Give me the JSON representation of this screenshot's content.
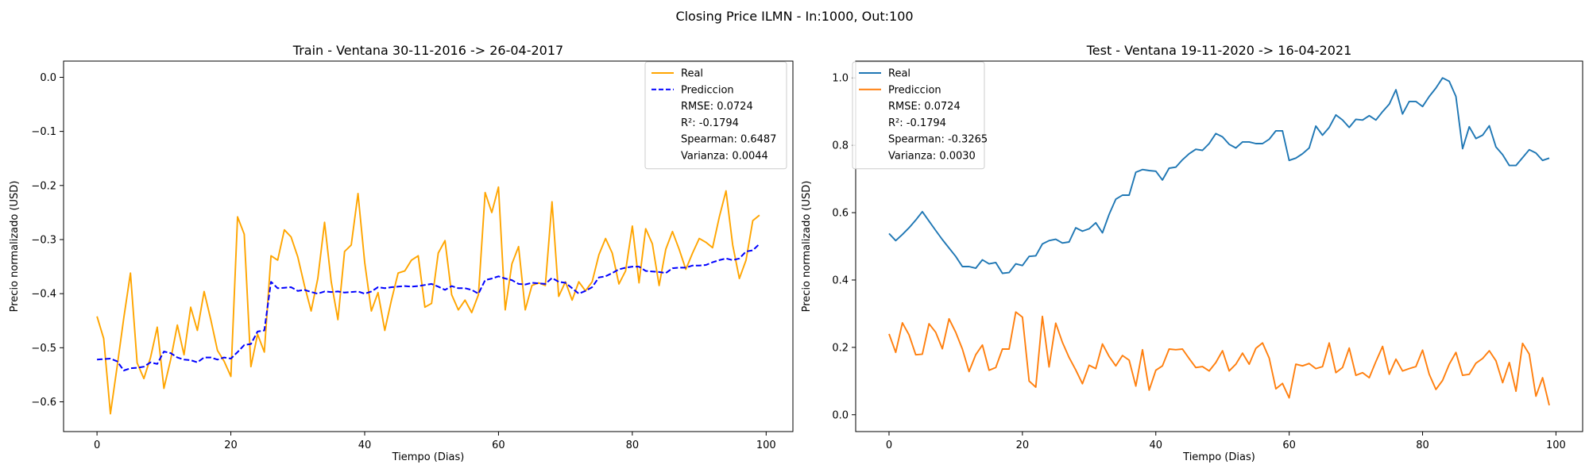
{
  "suptitle": "Closing Price ILMN - In:1000, Out:100",
  "chart_data": [
    {
      "type": "line",
      "title": "Train - Ventana 30-11-2016 -> 26-04-2017",
      "xlabel": "Tiempo (Dias)",
      "ylabel": "Precio normalizado (USD)",
      "xlim": [
        -5,
        104
      ],
      "ylim": [
        -0.655,
        0.03
      ],
      "xticks": [
        0,
        20,
        40,
        60,
        80,
        100
      ],
      "yticks": [
        -0.6,
        -0.5,
        -0.4,
        -0.3,
        -0.2,
        -0.1,
        0.0
      ],
      "ytick_labels": [
        "−0.6",
        "−0.5",
        "−0.4",
        "−0.3",
        "−0.2",
        "−0.1",
        "0.0"
      ],
      "grid": false,
      "legend_position": "top-right",
      "series": [
        {
          "name": "Real",
          "color": "#ffa500",
          "dash": "solid",
          "x_start": 0,
          "values": [
            -0.442,
            -0.483,
            -0.622,
            -0.535,
            -0.445,
            -0.362,
            -0.528,
            -0.557,
            -0.518,
            -0.462,
            -0.575,
            -0.522,
            -0.458,
            -0.513,
            -0.425,
            -0.468,
            -0.396,
            -0.448,
            -0.505,
            -0.525,
            -0.553,
            -0.258,
            -0.29,
            -0.535,
            -0.475,
            -0.508,
            -0.33,
            -0.338,
            -0.282,
            -0.295,
            -0.332,
            -0.385,
            -0.432,
            -0.372,
            -0.268,
            -0.378,
            -0.448,
            -0.322,
            -0.31,
            -0.215,
            -0.342,
            -0.432,
            -0.398,
            -0.468,
            -0.412,
            -0.362,
            -0.358,
            -0.338,
            -0.33,
            -0.425,
            -0.418,
            -0.325,
            -0.302,
            -0.402,
            -0.43,
            -0.412,
            -0.435,
            -0.402,
            -0.213,
            -0.25,
            -0.203,
            -0.43,
            -0.345,
            -0.313,
            -0.43,
            -0.385,
            -0.38,
            -0.385,
            -0.23,
            -0.405,
            -0.378,
            -0.412,
            -0.378,
            -0.395,
            -0.378,
            -0.328,
            -0.298,
            -0.325,
            -0.382,
            -0.358,
            -0.275,
            -0.38,
            -0.28,
            -0.308,
            -0.385,
            -0.318,
            -0.285,
            -0.318,
            -0.355,
            -0.325,
            -0.298,
            -0.305,
            -0.315,
            -0.258,
            -0.21,
            -0.31,
            -0.372,
            -0.338,
            -0.265,
            -0.255
          ]
        },
        {
          "name": "Prediccion",
          "color": "#0000ff",
          "dash": "dashed",
          "x_start": 0,
          "values": [
            -0.522,
            -0.521,
            -0.52,
            -0.525,
            -0.542,
            -0.538,
            -0.537,
            -0.535,
            -0.527,
            -0.53,
            -0.507,
            -0.51,
            -0.518,
            -0.522,
            -0.523,
            -0.527,
            -0.518,
            -0.518,
            -0.522,
            -0.518,
            -0.52,
            -0.508,
            -0.495,
            -0.493,
            -0.47,
            -0.468,
            -0.378,
            -0.39,
            -0.389,
            -0.388,
            -0.395,
            -0.393,
            -0.397,
            -0.4,
            -0.396,
            -0.397,
            -0.396,
            -0.398,
            -0.397,
            -0.396,
            -0.4,
            -0.396,
            -0.388,
            -0.39,
            -0.388,
            -0.387,
            -0.386,
            -0.387,
            -0.386,
            -0.384,
            -0.382,
            -0.387,
            -0.393,
            -0.386,
            -0.39,
            -0.39,
            -0.393,
            -0.4,
            -0.375,
            -0.372,
            -0.368,
            -0.372,
            -0.375,
            -0.382,
            -0.383,
            -0.38,
            -0.381,
            -0.382,
            -0.371,
            -0.378,
            -0.38,
            -0.39,
            -0.4,
            -0.395,
            -0.388,
            -0.37,
            -0.368,
            -0.362,
            -0.355,
            -0.352,
            -0.35,
            -0.35,
            -0.358,
            -0.359,
            -0.36,
            -0.362,
            -0.353,
            -0.352,
            -0.352,
            -0.348,
            -0.348,
            -0.347,
            -0.342,
            -0.338,
            -0.335,
            -0.338,
            -0.335,
            -0.322,
            -0.32,
            -0.308
          ]
        }
      ],
      "legend_text": [
        "RMSE: 0.0724",
        "R²: -0.1794",
        "Spearman: 0.6487",
        "Varianza: 0.0044"
      ]
    },
    {
      "type": "line",
      "title": "Test - Ventana 19-11-2020 -> 16-04-2021",
      "xlabel": "Tiempo (Dias)",
      "ylabel": "Precio normalizado (USD)",
      "xlim": [
        -5,
        104
      ],
      "ylim": [
        -0.05,
        1.05
      ],
      "xticks": [
        0,
        20,
        40,
        60,
        80,
        100
      ],
      "yticks": [
        0.0,
        0.2,
        0.4,
        0.6,
        0.8,
        1.0
      ],
      "ytick_labels": [
        "0.0",
        "0.2",
        "0.4",
        "0.6",
        "0.8",
        "1.0"
      ],
      "grid": false,
      "legend_position": "top-left",
      "series": [
        {
          "name": "Real",
          "color": "#1f77b4",
          "dash": "solid",
          "x_start": 0,
          "values": [
            0.538,
            0.517,
            0.535,
            0.555,
            0.578,
            0.603,
            0.575,
            0.547,
            0.52,
            0.495,
            0.47,
            0.44,
            0.44,
            0.435,
            0.46,
            0.448,
            0.452,
            0.42,
            0.422,
            0.448,
            0.443,
            0.47,
            0.472,
            0.507,
            0.517,
            0.521,
            0.51,
            0.513,
            0.555,
            0.545,
            0.552,
            0.57,
            0.54,
            0.595,
            0.64,
            0.652,
            0.652,
            0.72,
            0.728,
            0.725,
            0.723,
            0.697,
            0.732,
            0.735,
            0.757,
            0.775,
            0.788,
            0.785,
            0.805,
            0.835,
            0.825,
            0.803,
            0.792,
            0.81,
            0.81,
            0.805,
            0.805,
            0.818,
            0.843,
            0.843,
            0.755,
            0.762,
            0.775,
            0.792,
            0.857,
            0.83,
            0.853,
            0.89,
            0.875,
            0.853,
            0.877,
            0.875,
            0.888,
            0.875,
            0.9,
            0.922,
            0.965,
            0.893,
            0.93,
            0.93,
            0.915,
            0.945,
            0.97,
            1.0,
            0.99,
            0.945,
            0.79,
            0.855,
            0.82,
            0.83,
            0.858,
            0.795,
            0.772,
            0.74,
            0.74,
            0.763,
            0.787,
            0.777,
            0.755,
            0.762
          ]
        },
        {
          "name": "Prediccion",
          "color": "#ff7f0e",
          "dash": "solid",
          "x_start": 0,
          "values": [
            0.24,
            0.185,
            0.273,
            0.237,
            0.178,
            0.18,
            0.27,
            0.245,
            0.196,
            0.285,
            0.245,
            0.195,
            0.128,
            0.178,
            0.207,
            0.132,
            0.14,
            0.195,
            0.195,
            0.305,
            0.29,
            0.1,
            0.082,
            0.292,
            0.142,
            0.272,
            0.215,
            0.17,
            0.133,
            0.092,
            0.147,
            0.137,
            0.21,
            0.173,
            0.145,
            0.176,
            0.162,
            0.085,
            0.193,
            0.073,
            0.132,
            0.145,
            0.195,
            0.193,
            0.195,
            0.167,
            0.14,
            0.143,
            0.13,
            0.155,
            0.19,
            0.13,
            0.15,
            0.183,
            0.15,
            0.197,
            0.213,
            0.168,
            0.077,
            0.093,
            0.05,
            0.15,
            0.145,
            0.152,
            0.137,
            0.143,
            0.213,
            0.125,
            0.14,
            0.198,
            0.117,
            0.125,
            0.11,
            0.158,
            0.203,
            0.12,
            0.165,
            0.13,
            0.137,
            0.143,
            0.192,
            0.12,
            0.075,
            0.102,
            0.15,
            0.185,
            0.117,
            0.12,
            0.153,
            0.167,
            0.19,
            0.16,
            0.095,
            0.155,
            0.07,
            0.212,
            0.18,
            0.055,
            0.11,
            0.028
          ]
        }
      ],
      "legend_text": [
        "RMSE: 0.0724",
        "R²: -0.1794",
        "Spearman: -0.3265",
        "Varianza: 0.0030"
      ]
    }
  ]
}
